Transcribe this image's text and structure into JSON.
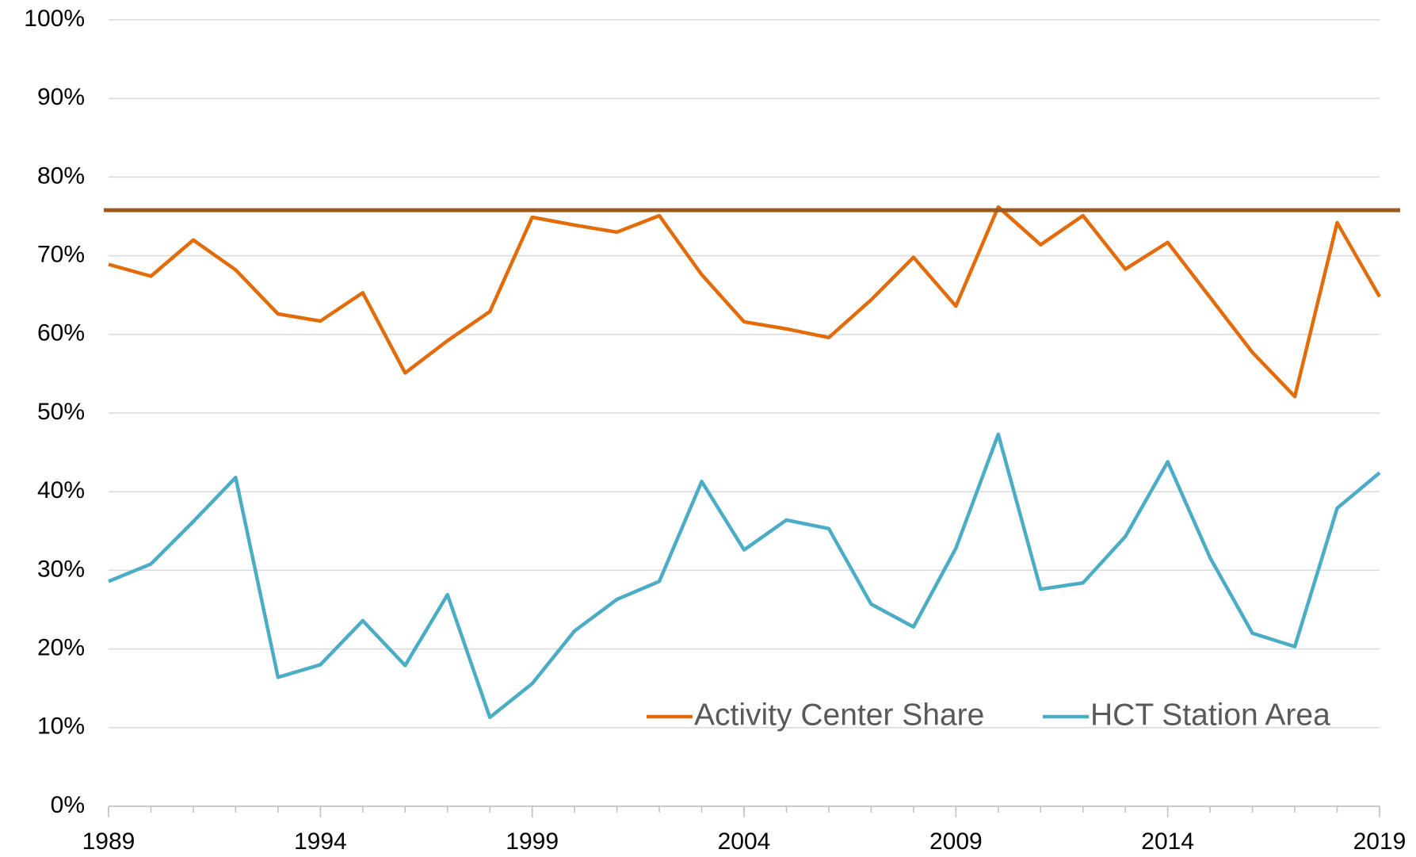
{
  "chart_data": {
    "type": "line",
    "x": [
      1989,
      1990,
      1991,
      1992,
      1993,
      1994,
      1995,
      1996,
      1997,
      1998,
      1999,
      2000,
      2001,
      2002,
      2003,
      2004,
      2005,
      2006,
      2007,
      2008,
      2009,
      2010,
      2011,
      2012,
      2013,
      2014,
      2015,
      2016,
      2017,
      2018,
      2019
    ],
    "series": [
      {
        "name": "Activity Center Share",
        "color": "#e36c0a",
        "values": [
          68.9,
          67.4,
          72.0,
          68.2,
          62.6,
          61.7,
          65.3,
          55.1,
          59.2,
          62.9,
          74.9,
          73.9,
          73.0,
          75.1,
          67.6,
          61.6,
          60.7,
          59.6,
          64.4,
          69.8,
          63.6,
          76.2,
          71.4,
          75.1,
          68.3,
          71.7,
          64.7,
          57.7,
          52.1,
          74.2,
          64.8
        ]
      },
      {
        "name": "HCT Station Area",
        "color": "#4bacc6",
        "values": [
          28.6,
          30.8,
          36.2,
          41.8,
          16.4,
          18.0,
          23.6,
          17.9,
          26.9,
          11.3,
          15.6,
          22.3,
          26.3,
          28.6,
          41.3,
          32.6,
          36.4,
          35.3,
          25.7,
          22.8,
          32.8,
          47.3,
          27.6,
          28.4,
          34.3,
          43.8,
          31.6,
          22.0,
          20.3,
          37.9,
          42.4
        ]
      }
    ],
    "reference_line": {
      "value": 75.8,
      "color": "#9c5a1a"
    },
    "xlim": [
      1989,
      2019
    ],
    "xticks": [
      1989,
      1994,
      1999,
      2004,
      2009,
      2014,
      2019
    ],
    "ylim": [
      0,
      100
    ],
    "yticks": [
      {
        "value": 0,
        "label": "0%"
      },
      {
        "value": 10,
        "label": "10%"
      },
      {
        "value": 20,
        "label": "20%"
      },
      {
        "value": 30,
        "label": "30%"
      },
      {
        "value": 40,
        "label": "40%"
      },
      {
        "value": 50,
        "label": "50%"
      },
      {
        "value": 60,
        "label": "60%"
      },
      {
        "value": 70,
        "label": "70%"
      },
      {
        "value": 80,
        "label": "80%"
      },
      {
        "value": 90,
        "label": "90%"
      },
      {
        "value": 100,
        "label": "100%"
      }
    ],
    "grid": true,
    "legend": "lower right"
  }
}
